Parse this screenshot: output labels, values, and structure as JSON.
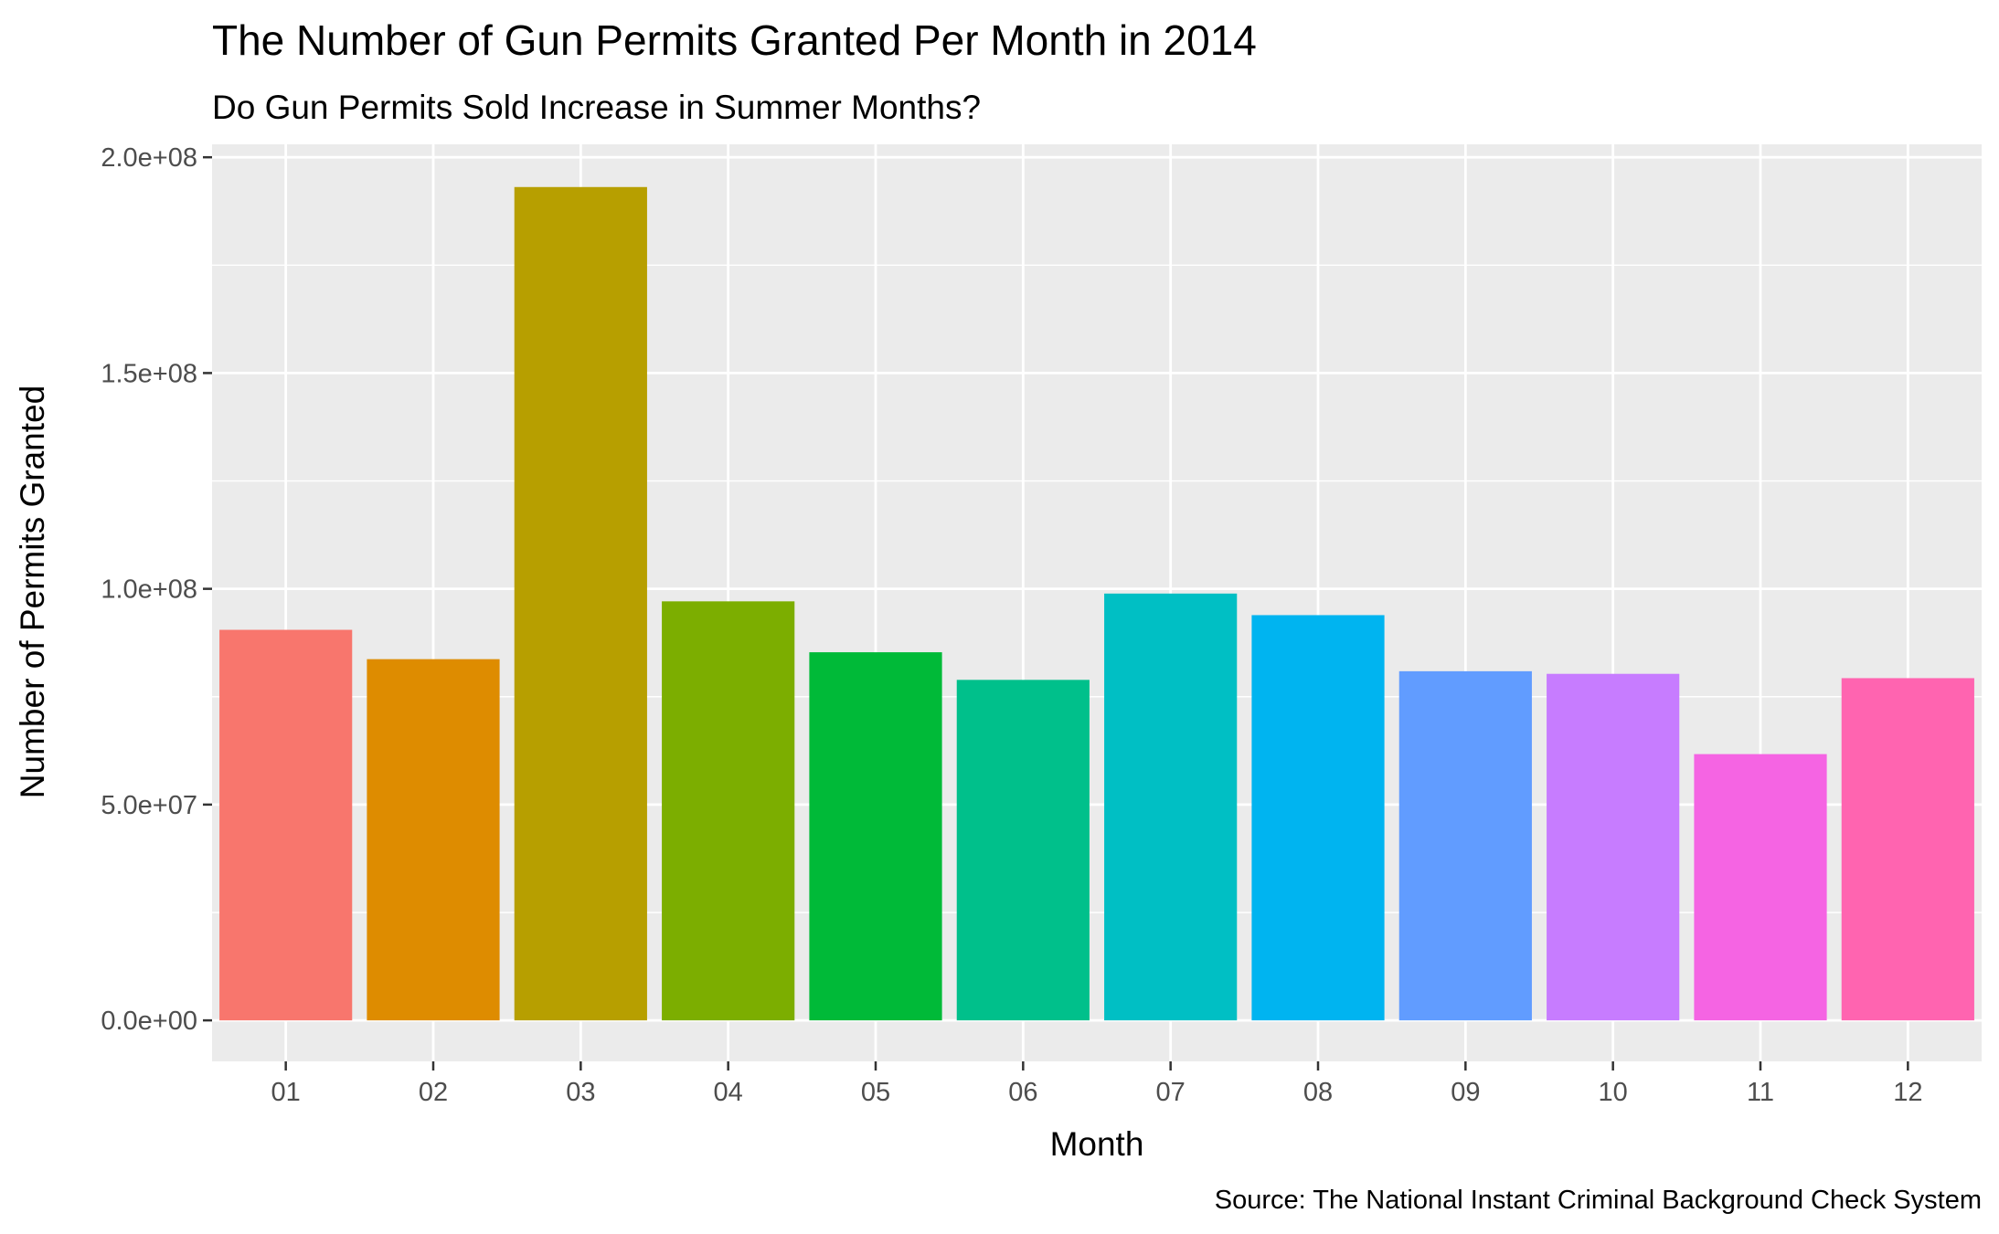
{
  "chart_data": {
    "type": "bar",
    "title": "The Number of Gun Permits Granted Per Month in 2014",
    "subtitle": "Do Gun Permits Sold Increase in Summer Months?",
    "xlabel": "Month",
    "ylabel": "Number of Permits Granted",
    "caption": "Source: The National Instant Criminal Background Check System",
    "categories": [
      "01",
      "02",
      "03",
      "04",
      "05",
      "06",
      "07",
      "08",
      "09",
      "10",
      "11",
      "12"
    ],
    "values": [
      90500000,
      83700000,
      193100000,
      97100000,
      85300000,
      78900000,
      98900000,
      93900000,
      80900000,
      80300000,
      61700000,
      79300000
    ],
    "colors": [
      "#F8766D",
      "#DE8C00",
      "#B79F00",
      "#7CAE00",
      "#00BA38",
      "#00C08B",
      "#00BFC4",
      "#00B4F0",
      "#619CFF",
      "#C77CFF",
      "#F564E3",
      "#FF64B0"
    ],
    "ylim": [
      -9500000,
      203000000
    ],
    "yticks": [
      0,
      50000000,
      100000000,
      150000000,
      200000000
    ],
    "ytick_labels": [
      "0.0e+00",
      "5.0e+07",
      "1.0e+08",
      "1.5e+08",
      "2.0e+08"
    ],
    "grid": true,
    "legend": "none",
    "panel_background": "#EBEBEB",
    "grid_color": "#FFFFFF"
  }
}
